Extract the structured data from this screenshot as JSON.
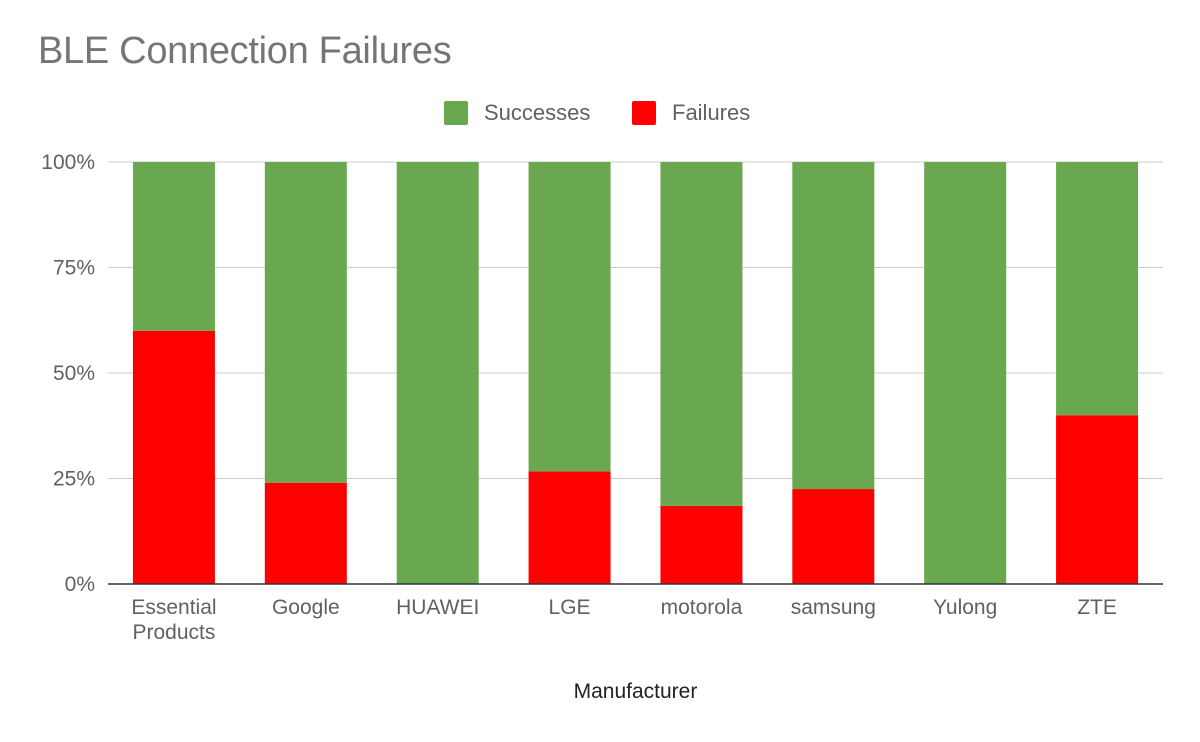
{
  "chart_data": {
    "type": "bar",
    "stacked": "percent",
    "title": "BLE Connection Failures",
    "xlabel": "Manufacturer",
    "ylabel": "",
    "ylim": [
      0,
      100
    ],
    "yticks": [
      "0%",
      "25%",
      "50%",
      "75%",
      "100%"
    ],
    "ytick_values": [
      0,
      25,
      50,
      75,
      100
    ],
    "categories": [
      [
        "Essential",
        "Products"
      ],
      [
        "Google"
      ],
      [
        "HUAWEI"
      ],
      [
        "LGE"
      ],
      [
        "motorola"
      ],
      [
        "samsung"
      ],
      [
        "Yulong"
      ],
      [
        "ZTE"
      ]
    ],
    "series": [
      {
        "name": "Failures",
        "color": "#ff0000",
        "values": [
          60,
          24,
          0,
          26.7,
          18.5,
          22.5,
          0,
          40
        ]
      },
      {
        "name": "Successes",
        "color": "#6aa84f",
        "values": [
          40,
          76,
          100,
          73.3,
          81.5,
          77.5,
          100,
          60
        ]
      }
    ],
    "legend": {
      "position": "top",
      "items": [
        {
          "name": "Successes",
          "color": "#6aa84f"
        },
        {
          "name": "Failures",
          "color": "#ff0000"
        }
      ]
    },
    "grid": true
  }
}
